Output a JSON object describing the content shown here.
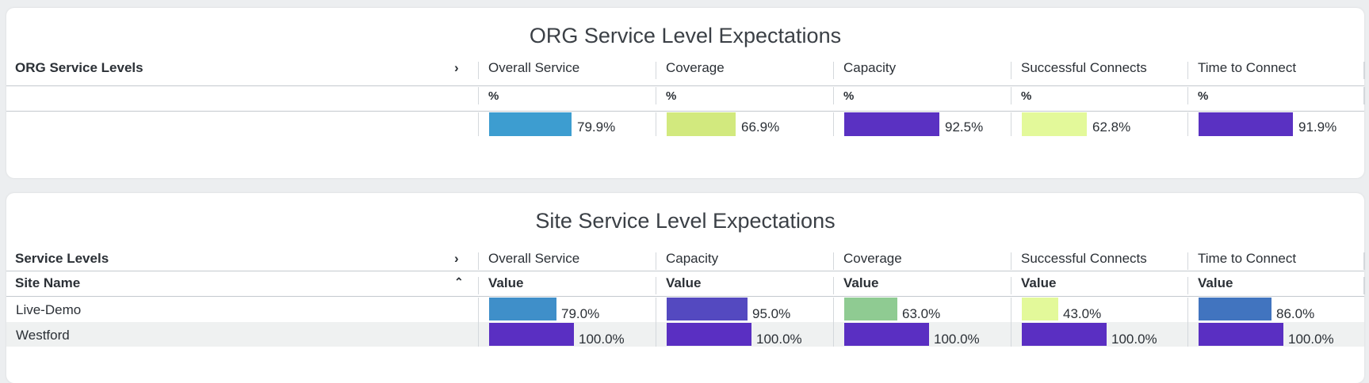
{
  "org": {
    "title": "ORG Service Level Expectations",
    "row_header": "ORG Service Levels",
    "expand_icon": "chevron-right-icon",
    "unit_label": "%",
    "columns": [
      {
        "name": "Overall Service",
        "unit": "%",
        "value": 79.9,
        "display": "79.9%",
        "color": "#3d9dd0"
      },
      {
        "name": "Coverage",
        "unit": "%",
        "value": 66.9,
        "display": "66.9%",
        "color": "#d2e97e"
      },
      {
        "name": "Capacity",
        "unit": "%",
        "value": 92.5,
        "display": "92.5%",
        "color": "#5a31c2"
      },
      {
        "name": "Successful Connects",
        "unit": "%",
        "value": 62.8,
        "display": "62.8%",
        "color": "#e3f99a"
      },
      {
        "name": "Time to Connect",
        "unit": "%",
        "value": 91.9,
        "display": "91.9%",
        "color": "#5a31c2"
      }
    ]
  },
  "site": {
    "title": "Site Service Level Expectations",
    "row_header": "Service Levels",
    "expand_icon": "chevron-right-icon",
    "sub_header": "Site Name",
    "sort_icon": "chevron-up-icon",
    "columns": [
      {
        "name": "Overall Service",
        "unit": "Value"
      },
      {
        "name": "Capacity",
        "unit": "Value"
      },
      {
        "name": "Coverage",
        "unit": "Value"
      },
      {
        "name": "Successful Connects",
        "unit": "Value"
      },
      {
        "name": "Time to Connect",
        "unit": "Value"
      }
    ],
    "rows": [
      {
        "site": "Live-Demo",
        "cells": [
          {
            "value": 79.0,
            "display": "79.0%",
            "color": "#3f8fc9"
          },
          {
            "value": 95.0,
            "display": "95.0%",
            "color": "#5449c0"
          },
          {
            "value": 63.0,
            "display": "63.0%",
            "color": "#8fcb92"
          },
          {
            "value": 43.0,
            "display": "43.0%",
            "color": "#e3f99a"
          },
          {
            "value": 86.0,
            "display": "86.0%",
            "color": "#4174bf"
          }
        ]
      },
      {
        "site": "Westford",
        "cells": [
          {
            "value": 100.0,
            "display": "100.0%",
            "color": "#5a2fc2"
          },
          {
            "value": 100.0,
            "display": "100.0%",
            "color": "#5a2fc2"
          },
          {
            "value": 100.0,
            "display": "100.0%",
            "color": "#5a2fc2"
          },
          {
            "value": 100.0,
            "display": "100.0%",
            "color": "#5a2fc2"
          },
          {
            "value": 100.0,
            "display": "100.0%",
            "color": "#5a2fc2"
          }
        ]
      }
    ]
  }
}
